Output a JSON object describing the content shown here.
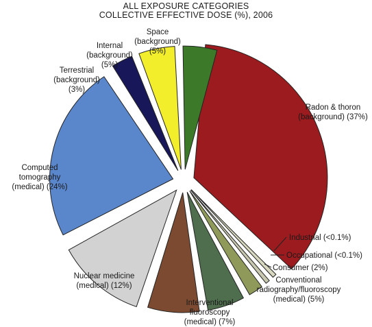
{
  "chart_data": {
    "type": "pie",
    "title_lines": [
      "ALL EXPOSURE CATEGORIES",
      "COLLECTIVE EFFECTIVE DOSE (%), 2006"
    ],
    "slices": [
      {
        "label_lines": [
          "Radon & thoron",
          "(background) (37%)"
        ],
        "value": 37,
        "color": "#9b1b1e"
      },
      {
        "label_lines": [
          "Industrial (<0.1%)"
        ],
        "value": 0.1,
        "color": "#d8d8c0"
      },
      {
        "label_lines": [
          "Occupational (<0.1%)"
        ],
        "value": 0.1,
        "color": "#c8c8b0"
      },
      {
        "label_lines": [
          "Consumer (2%)"
        ],
        "value": 2,
        "color": "#8f9a5a"
      },
      {
        "label_lines": [
          "Conventional",
          "radiography/fluoroscopy",
          "(medical) (5%)"
        ],
        "value": 5,
        "color": "#4e6e4e"
      },
      {
        "label_lines": [
          "Interventional",
          "fluoroscopy",
          "(medical) (7%)"
        ],
        "value": 7,
        "color": "#7c4a30"
      },
      {
        "label_lines": [
          "Nuclear medicine",
          "(medical) (12%)"
        ],
        "value": 12,
        "color": "#d2d2d2"
      },
      {
        "label_lines": [
          "Computed",
          "tomography",
          "(medical) (24%)"
        ],
        "value": 24,
        "color": "#5a86cc"
      },
      {
        "label_lines": [
          "Terrestrial",
          "(background)",
          "(3%)"
        ],
        "value": 3,
        "color": "#17175a"
      },
      {
        "label_lines": [
          "Internal",
          "(background)",
          "(5%)"
        ],
        "value": 5,
        "color": "#f2ee2c"
      },
      {
        "label_lines": [
          "Space",
          "(background)",
          "(5%)"
        ],
        "value": 5,
        "color": "#3c7a2a"
      }
    ]
  }
}
